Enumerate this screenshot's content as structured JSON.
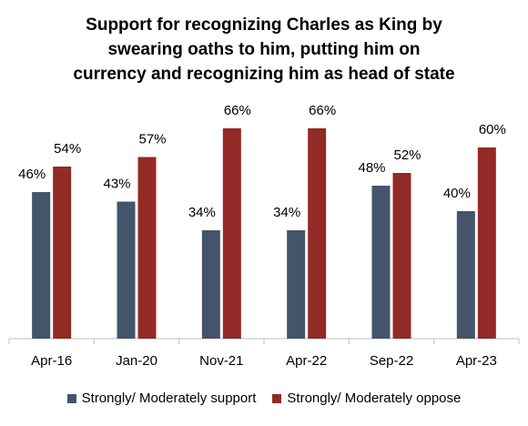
{
  "title_lines": [
    "Support for recognizing Charles as King by",
    "swearing oaths to him, putting him on",
    "currency and recognizing him as head of state"
  ],
  "colors": {
    "support": "#44546a",
    "oppose": "#922a26"
  },
  "chart_data": {
    "type": "bar",
    "title": "Support for recognizing Charles as King by swearing oaths to him, putting him on currency and recognizing him as head of state",
    "categories": [
      "Apr-16",
      "Jan-20",
      "Nov-21",
      "Apr-22",
      "Sep-22",
      "Apr-23"
    ],
    "series": [
      {
        "name": "Strongly/ Moderately support",
        "values": [
          46,
          43,
          34,
          34,
          48,
          40
        ],
        "labels": [
          "46%",
          "43%",
          "34%",
          "34%",
          "48%",
          "40%"
        ]
      },
      {
        "name": "Strongly/ Moderately oppose",
        "values": [
          54,
          57,
          66,
          66,
          52,
          60
        ],
        "labels": [
          "54%",
          "57%",
          "66%",
          "66%",
          "52%",
          "60%"
        ]
      }
    ],
    "ylim": [
      0,
      70
    ],
    "grid": false,
    "legend": "bottom"
  }
}
